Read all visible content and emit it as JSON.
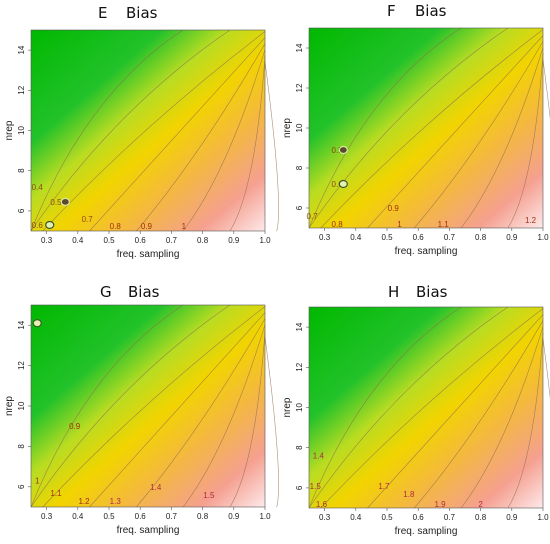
{
  "chart_data": [
    {
      "type": "heatmap",
      "panel": "E",
      "title": "Bias",
      "xlabel": "freq. sampling",
      "ylabel": "nrep",
      "xlim": [
        0.25,
        1.0
      ],
      "ylim": [
        5,
        15
      ],
      "xticks": [
        "0.3",
        "0.4",
        "0.5",
        "0.6",
        "0.7",
        "0.8",
        "0.9",
        "1.0"
      ],
      "yticks": [
        "6",
        "8",
        "10",
        "12",
        "14"
      ],
      "contour_labels": [
        {
          "text": "0.4",
          "x": 0.27,
          "y": 7.2
        },
        {
          "text": "0.5",
          "x": 0.33,
          "y": 6.45
        },
        {
          "text": "0.6",
          "x": 0.27,
          "y": 5.3
        },
        {
          "text": "0.7",
          "x": 0.43,
          "y": 5.6
        },
        {
          "text": "0.8",
          "x": 0.52,
          "y": 5.25
        },
        {
          "text": "0.9",
          "x": 0.62,
          "y": 5.25
        },
        {
          "text": "1",
          "x": 0.74,
          "y": 5.25
        }
      ],
      "markers": [
        {
          "x": 0.36,
          "y": 6.45,
          "style": "filled"
        },
        {
          "x": 0.31,
          "y": 5.3,
          "style": "ring"
        }
      ]
    },
    {
      "type": "heatmap",
      "panel": "F",
      "title": "Bias",
      "xlabel": "freq. sampling",
      "ylabel": "nrep",
      "xlim": [
        0.25,
        1.0
      ],
      "ylim": [
        5,
        15
      ],
      "xticks": [
        "0.3",
        "0.4",
        "0.5",
        "0.6",
        "0.7",
        "0.8",
        "0.9",
        "1.0"
      ],
      "yticks": [
        "6",
        "8",
        "10",
        "12",
        "14"
      ],
      "contour_labels": [
        {
          "text": "0.5",
          "x": 0.34,
          "y": 8.9
        },
        {
          "text": "0.6",
          "x": 0.34,
          "y": 7.2
        },
        {
          "text": "0.7",
          "x": 0.26,
          "y": 5.6
        },
        {
          "text": "0.8",
          "x": 0.34,
          "y": 5.2
        },
        {
          "text": "0.9",
          "x": 0.52,
          "y": 6.0
        },
        {
          "text": "1",
          "x": 0.54,
          "y": 5.2
        },
        {
          "text": "1.1",
          "x": 0.68,
          "y": 5.2
        },
        {
          "text": "1.2",
          "x": 0.96,
          "y": 5.4
        }
      ],
      "markers": [
        {
          "x": 0.36,
          "y": 8.9,
          "style": "filled"
        },
        {
          "x": 0.36,
          "y": 7.2,
          "style": "ring"
        }
      ]
    },
    {
      "type": "heatmap",
      "panel": "G",
      "title": "Bias",
      "xlabel": "freq. sampling",
      "ylabel": "nrep",
      "xlim": [
        0.25,
        1.0
      ],
      "ylim": [
        5,
        15
      ],
      "xticks": [
        "0.3",
        "0.4",
        "0.5",
        "0.6",
        "0.7",
        "0.8",
        "0.9",
        "1.0"
      ],
      "yticks": [
        "6",
        "8",
        "10",
        "12",
        "14"
      ],
      "contour_labels": [
        {
          "text": "0.9",
          "x": 0.39,
          "y": 9.0
        },
        {
          "text": "1",
          "x": 0.27,
          "y": 6.3
        },
        {
          "text": "1.1",
          "x": 0.33,
          "y": 5.7
        },
        {
          "text": "1.2",
          "x": 0.42,
          "y": 5.3
        },
        {
          "text": "1.3",
          "x": 0.52,
          "y": 5.3
        },
        {
          "text": "1.4",
          "x": 0.65,
          "y": 6.0
        },
        {
          "text": "1.5",
          "x": 0.82,
          "y": 5.6
        }
      ],
      "markers": [
        {
          "x": 0.27,
          "y": 14.1,
          "style": "ring"
        }
      ]
    },
    {
      "type": "heatmap",
      "panel": "H",
      "title": "Bias",
      "xlabel": "freq. sampling",
      "ylabel": "nrep",
      "xlim": [
        0.25,
        1.0
      ],
      "ylim": [
        5,
        15
      ],
      "xticks": [
        "0.3",
        "0.4",
        "0.5",
        "0.6",
        "0.7",
        "0.8",
        "0.9",
        "1.0"
      ],
      "yticks": [
        "6",
        "8",
        "10",
        "12",
        "14"
      ],
      "contour_labels": [
        {
          "text": "1.4",
          "x": 0.28,
          "y": 7.6
        },
        {
          "text": "1.5",
          "x": 0.27,
          "y": 6.1
        },
        {
          "text": "1.6",
          "x": 0.29,
          "y": 5.2
        },
        {
          "text": "1.7",
          "x": 0.49,
          "y": 6.1
        },
        {
          "text": "1.8",
          "x": 0.57,
          "y": 5.7
        },
        {
          "text": "1.9",
          "x": 0.67,
          "y": 5.2
        },
        {
          "text": "2",
          "x": 0.8,
          "y": 5.2
        }
      ],
      "markers": []
    }
  ]
}
